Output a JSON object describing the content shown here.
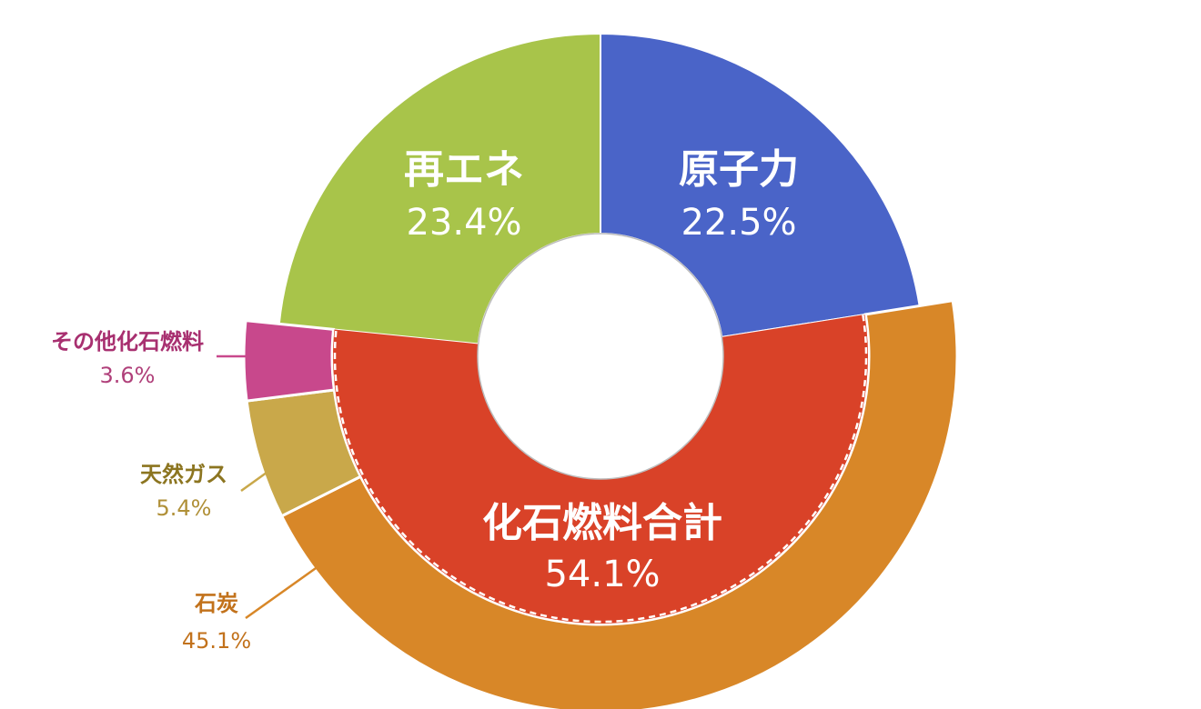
{
  "chart_data": {
    "type": "pie",
    "variant": "double-ring-donut",
    "title": "",
    "inner_ring": [
      {
        "label": "原子力",
        "value": 22.5,
        "value_label": "22.5%",
        "color": "#4A64C8"
      },
      {
        "label": "化石燃料合計",
        "value": 54.1,
        "value_label": "54.1%",
        "color": "#D94228"
      },
      {
        "label": "再エネ",
        "value": 23.4,
        "value_label": "23.4%",
        "color": "#A8C44A"
      }
    ],
    "outer_ring": [
      {
        "label": "石炭",
        "value": 45.1,
        "value_label": "45.1%",
        "color": "#D88728",
        "text_color": "#C2721C"
      },
      {
        "label": "天然ガス",
        "value": 5.4,
        "value_label": "5.4%",
        "color": "#C9A84A",
        "text_color": "#8C7520",
        "value_color": "#B09038"
      },
      {
        "label": "その他化石燃料",
        "value": 3.6,
        "value_label": "3.6%",
        "color": "#C8488C",
        "text_color": "#A83070",
        "value_color": "#B0407A"
      }
    ]
  }
}
